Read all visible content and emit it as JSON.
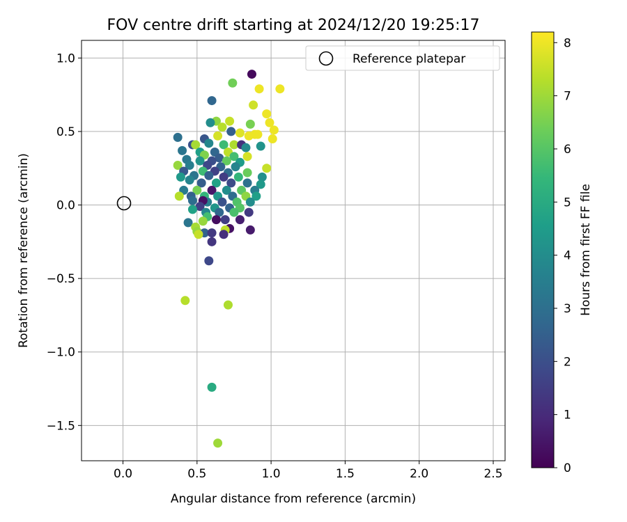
{
  "chart_data": {
    "type": "scatter",
    "title": "FOV centre drift starting at 2024/12/20 19:25:17",
    "xlabel": "Angular distance from reference (arcmin)",
    "ylabel": "Rotation from reference (arcmin)",
    "xlim": [
      -0.28,
      2.58
    ],
    "ylim": [
      -1.74,
      1.12
    ],
    "x_ticks": [
      0.0,
      0.5,
      1.0,
      1.5,
      2.0,
      2.5
    ],
    "x_tick_labels": [
      "0.0",
      "0.5",
      "1.0",
      "1.5",
      "2.0",
      "2.5"
    ],
    "y_ticks": [
      -1.5,
      -1.0,
      -0.5,
      0.0,
      0.5,
      1.0
    ],
    "y_tick_labels": [
      "−1.5",
      "−1.0",
      "−0.5",
      "0.0",
      "0.5",
      "1.0"
    ],
    "grid": true,
    "legend": {
      "placement": "top-right",
      "entries": [
        {
          "label": "Reference platepar",
          "marker": "open-circle"
        }
      ]
    },
    "reference_point": {
      "x": 0.0,
      "y": 0.0
    },
    "colorbar": {
      "label": "Hours from first FF file",
      "range": [
        0,
        8.2
      ],
      "ticks": [
        0,
        1,
        2,
        3,
        4,
        5,
        6,
        7,
        8
      ],
      "tick_labels": [
        "0",
        "1",
        "2",
        "3",
        "4",
        "5",
        "6",
        "7",
        "8"
      ],
      "colormap": "viridis",
      "stops": [
        "#440154",
        "#482878",
        "#3e4989",
        "#31688e",
        "#26828e",
        "#1f9e89",
        "#35b779",
        "#6ece58",
        "#b5de2b",
        "#fde725"
      ]
    },
    "points": [
      [
        0.87,
        0.89,
        0.2
      ],
      [
        0.74,
        0.83,
        6.4
      ],
      [
        0.6,
        0.71,
        2.7
      ],
      [
        0.92,
        0.79,
        8.0
      ],
      [
        1.06,
        0.79,
        8.0
      ],
      [
        0.88,
        0.68,
        7.6
      ],
      [
        0.97,
        0.62,
        8.0
      ],
      [
        0.63,
        0.57,
        6.8
      ],
      [
        0.72,
        0.57,
        7.5
      ],
      [
        0.59,
        0.56,
        4.0
      ],
      [
        0.86,
        0.55,
        6.5
      ],
      [
        0.99,
        0.56,
        8.0
      ],
      [
        1.02,
        0.51,
        8.0
      ],
      [
        0.67,
        0.53,
        7.3
      ],
      [
        0.79,
        0.49,
        7.8
      ],
      [
        0.89,
        0.48,
        8.0
      ],
      [
        0.91,
        0.48,
        8.0
      ],
      [
        0.85,
        0.47,
        8.0
      ],
      [
        0.37,
        0.46,
        3.0
      ],
      [
        0.55,
        0.45,
        2.2
      ],
      [
        1.01,
        0.45,
        8.0
      ],
      [
        0.64,
        0.47,
        7.7
      ],
      [
        0.73,
        0.5,
        2.5
      ],
      [
        0.47,
        0.41,
        2.1
      ],
      [
        0.49,
        0.41,
        7.1
      ],
      [
        0.58,
        0.42,
        3.8
      ],
      [
        0.68,
        0.41,
        5.6
      ],
      [
        0.75,
        0.41,
        7.2
      ],
      [
        0.8,
        0.41,
        1.2
      ],
      [
        0.93,
        0.4,
        4.2
      ],
      [
        0.83,
        0.39,
        3.9
      ],
      [
        0.4,
        0.37,
        3.2
      ],
      [
        0.52,
        0.36,
        4.6
      ],
      [
        0.62,
        0.36,
        2.7
      ],
      [
        0.71,
        0.36,
        7.4
      ],
      [
        0.55,
        0.34,
        6.6
      ],
      [
        0.65,
        0.32,
        2.4
      ],
      [
        0.75,
        0.33,
        5.7
      ],
      [
        0.84,
        0.33,
        7.7
      ],
      [
        0.43,
        0.31,
        3.3
      ],
      [
        0.52,
        0.3,
        4.2
      ],
      [
        0.6,
        0.3,
        2.0
      ],
      [
        0.7,
        0.3,
        6.2
      ],
      [
        0.79,
        0.29,
        4.5
      ],
      [
        0.37,
        0.27,
        6.9
      ],
      [
        0.45,
        0.27,
        3.5
      ],
      [
        0.57,
        0.27,
        1.8
      ],
      [
        0.66,
        0.26,
        2.6
      ],
      [
        0.76,
        0.26,
        3.7
      ],
      [
        0.97,
        0.25,
        7.5
      ],
      [
        0.41,
        0.23,
        2.3
      ],
      [
        0.54,
        0.23,
        5.6
      ],
      [
        0.62,
        0.23,
        1.6
      ],
      [
        0.71,
        0.22,
        2.9
      ],
      [
        0.84,
        0.22,
        6.3
      ],
      [
        0.39,
        0.19,
        4.4
      ],
      [
        0.48,
        0.2,
        3.2
      ],
      [
        0.58,
        0.2,
        2.5
      ],
      [
        0.68,
        0.19,
        1.5
      ],
      [
        0.78,
        0.19,
        5.4
      ],
      [
        0.94,
        0.19,
        4.1
      ],
      [
        0.45,
        0.17,
        3.7
      ],
      [
        0.53,
        0.15,
        2.4
      ],
      [
        0.63,
        0.15,
        4.7
      ],
      [
        0.73,
        0.15,
        1.9
      ],
      [
        0.84,
        0.15,
        3.1
      ],
      [
        0.93,
        0.14,
        4.4
      ],
      [
        0.41,
        0.1,
        3.4
      ],
      [
        0.5,
        0.1,
        6.5
      ],
      [
        0.6,
        0.1,
        0.5
      ],
      [
        0.7,
        0.1,
        4.0
      ],
      [
        0.8,
        0.1,
        6.1
      ],
      [
        0.89,
        0.1,
        3.5
      ],
      [
        0.38,
        0.06,
        7.3
      ],
      [
        0.46,
        0.06,
        2.5
      ],
      [
        0.55,
        0.06,
        5.4
      ],
      [
        0.64,
        0.06,
        4.3
      ],
      [
        0.74,
        0.06,
        2.9
      ],
      [
        0.83,
        0.06,
        6.8
      ],
      [
        0.9,
        0.06,
        4.6
      ],
      [
        0.47,
        0.03,
        2.9
      ],
      [
        0.57,
        0.02,
        3.5
      ],
      [
        0.67,
        0.02,
        2.1
      ],
      [
        0.77,
        0.02,
        5.9
      ],
      [
        0.86,
        0.02,
        4.0
      ],
      [
        0.54,
        0.03,
        0.4
      ],
      [
        0.52,
        -0.01,
        1.6
      ],
      [
        0.62,
        -0.02,
        4.3
      ],
      [
        0.72,
        -0.02,
        2.6
      ],
      [
        0.79,
        -0.02,
        6.0
      ],
      [
        0.47,
        -0.03,
        4.7
      ],
      [
        0.56,
        -0.05,
        3.8
      ],
      [
        0.65,
        -0.05,
        2.7
      ],
      [
        0.75,
        -0.05,
        5.8
      ],
      [
        0.85,
        -0.05,
        1.4
      ],
      [
        0.57,
        -0.08,
        5.7
      ],
      [
        0.63,
        -0.1,
        0.3
      ],
      [
        0.69,
        -0.1,
        1.5
      ],
      [
        0.79,
        -0.1,
        0.7
      ],
      [
        0.44,
        -0.12,
        3.2
      ],
      [
        0.54,
        -0.11,
        6.9
      ],
      [
        0.49,
        -0.15,
        7.1
      ],
      [
        0.72,
        -0.16,
        0.4
      ],
      [
        0.69,
        -0.17,
        7.4
      ],
      [
        0.86,
        -0.17,
        0.6
      ],
      [
        0.5,
        -0.18,
        6.9
      ],
      [
        0.55,
        -0.19,
        2.6
      ],
      [
        0.6,
        -0.19,
        1.4
      ],
      [
        0.51,
        -0.2,
        7.5
      ],
      [
        0.68,
        -0.2,
        1.1
      ],
      [
        0.6,
        -0.25,
        1.3
      ],
      [
        0.58,
        -0.38,
        1.8
      ],
      [
        0.42,
        -0.65,
        7.3
      ],
      [
        0.71,
        -0.68,
        7.2
      ],
      [
        0.6,
        -1.24,
        5.0
      ],
      [
        0.64,
        -1.62,
        7.0
      ]
    ]
  }
}
